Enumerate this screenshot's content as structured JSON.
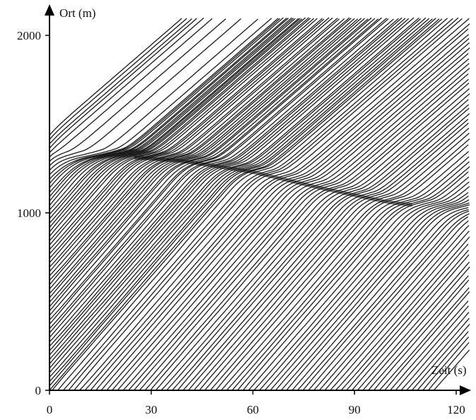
{
  "chart_data": {
    "type": "line",
    "title": "",
    "xlabel": "Zeit (s)",
    "ylabel": "Ort (m)",
    "xlim": [
      0,
      125
    ],
    "ylim": [
      0,
      2100
    ],
    "xticks": [
      0,
      30,
      60,
      90,
      120
    ],
    "yticks": [
      0,
      1000,
      2000
    ],
    "grid": false,
    "legend": "none",
    "line_color": "#1a1a1a",
    "jam_front": {
      "description": "backward-propagating congestion front",
      "t": [
        0,
        20,
        40,
        60,
        80,
        100,
        122
      ],
      "x": [
        1300,
        1320,
        1290,
        1230,
        1140,
        1060,
        1010
      ]
    },
    "free_speed_mps": 22,
    "jam_speed_mps": 3,
    "trajectories": {
      "count": 130,
      "time_range": [
        0,
        124
      ],
      "position_range": [
        0,
        2100
      ]
    }
  }
}
